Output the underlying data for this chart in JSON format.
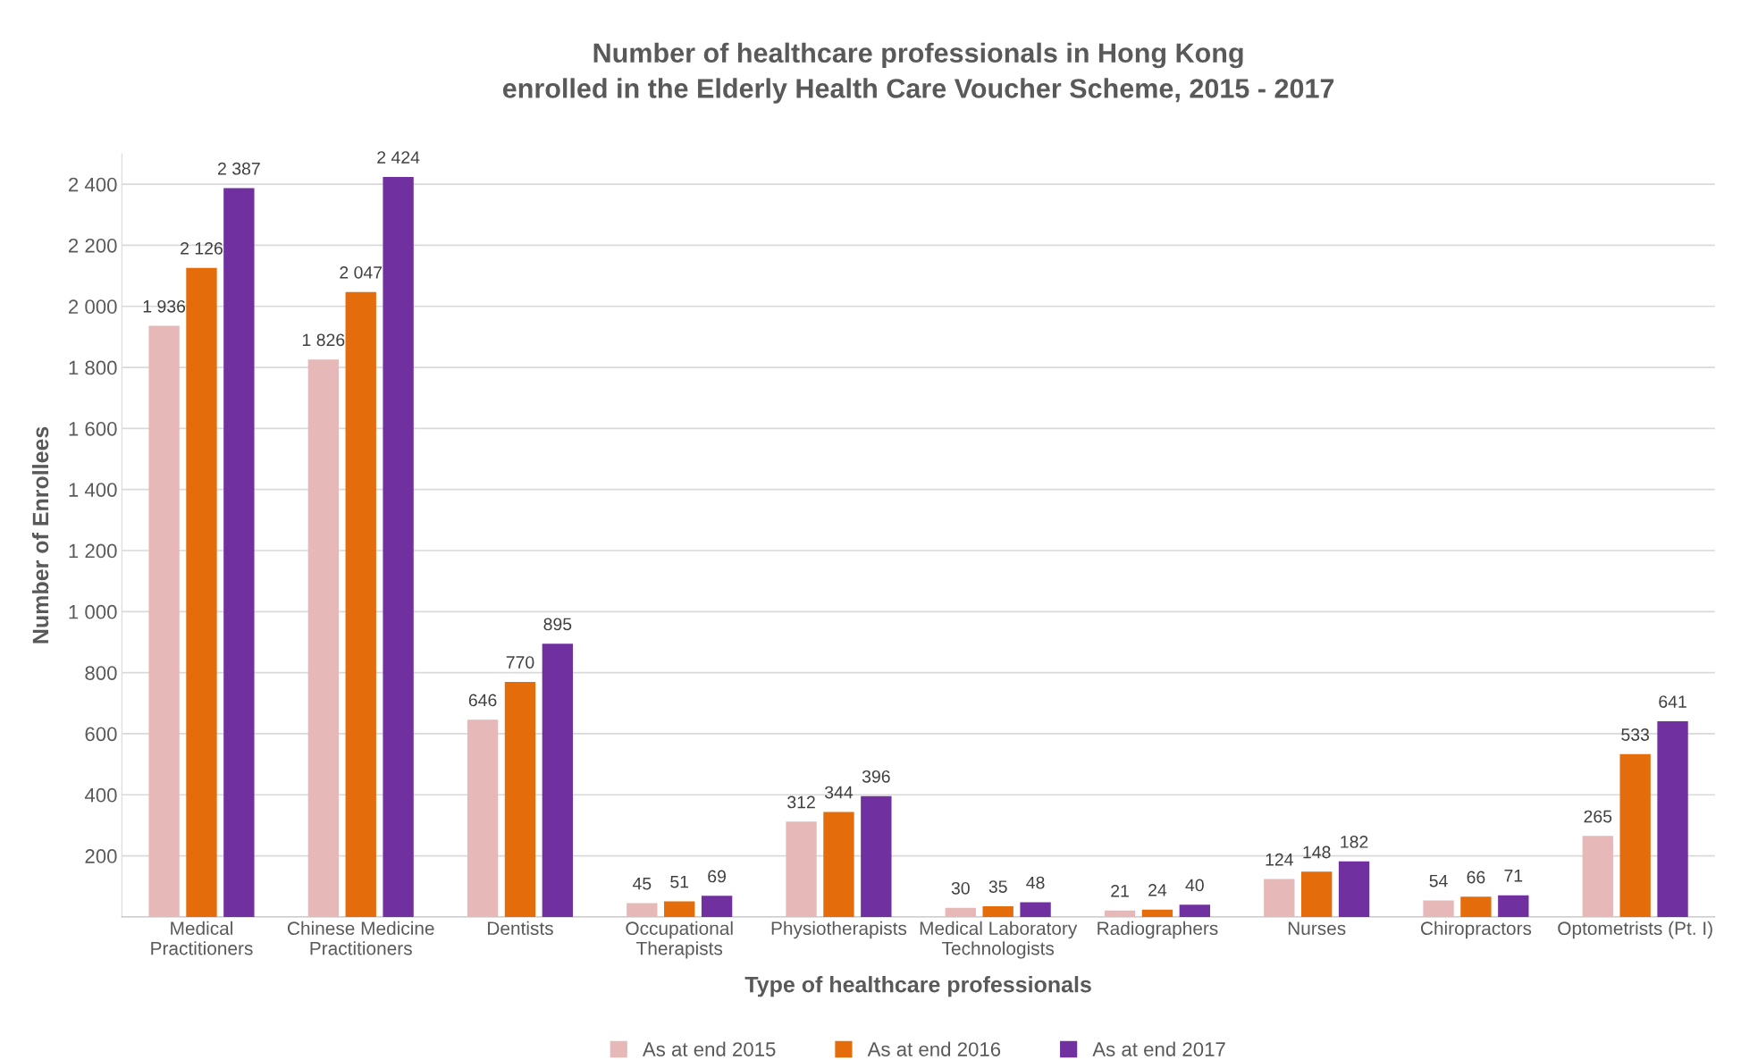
{
  "chart_data": {
    "type": "bar",
    "title": "Number of healthcare professionals in Hong Kong\nenrolled in the Elderly Health Care Voucher Scheme, 2015 - 2017",
    "xlabel": "Type of healthcare professionals",
    "ylabel": "Number of Enrollees",
    "categories": [
      "Medical\nPractitioners",
      "Chinese Medicine\nPractitioners",
      "Dentists",
      "Occupational\nTherapists",
      "Physiotherapists",
      "Medical Laboratory\nTechnologists",
      "Radiographers",
      "Nurses",
      "Chiropractors",
      "Optometrists (Pt. I)"
    ],
    "series": [
      {
        "name": "As at end 2015",
        "color": "#e6b9b8",
        "values": [
          1936,
          1826,
          646,
          45,
          312,
          30,
          21,
          124,
          54,
          265
        ],
        "value_labels": [
          "1 936",
          "1 826",
          "646",
          "45",
          "312",
          "30",
          "21",
          "124",
          "54",
          "265"
        ]
      },
      {
        "name": "As at end 2016",
        "color": "#e46c0a",
        "values": [
          2126,
          2047,
          770,
          51,
          344,
          35,
          24,
          148,
          66,
          533
        ],
        "value_labels": [
          "2 126",
          "2 047",
          "770",
          "51",
          "344",
          "35",
          "24",
          "148",
          "66",
          "533"
        ]
      },
      {
        "name": "As at end 2017",
        "color": "#7030a0",
        "values": [
          2387,
          2424,
          895,
          69,
          396,
          48,
          40,
          182,
          71,
          641
        ],
        "value_labels": [
          "2 387",
          "2 424",
          "895",
          "69",
          "396",
          "48",
          "40",
          "182",
          "71",
          "641"
        ]
      }
    ],
    "ylim": [
      0,
      2500
    ],
    "yticks": [
      {
        "value": 200,
        "label": "200"
      },
      {
        "value": 400,
        "label": "400"
      },
      {
        "value": 600,
        "label": "600"
      },
      {
        "value": 800,
        "label": "800"
      },
      {
        "value": 1000,
        "label": "1 000"
      },
      {
        "value": 1200,
        "label": "1 200"
      },
      {
        "value": 1400,
        "label": "1 400"
      },
      {
        "value": 1600,
        "label": "1 600"
      },
      {
        "value": 1800,
        "label": "1 800"
      },
      {
        "value": 2000,
        "label": "2 000"
      },
      {
        "value": 2200,
        "label": "2 200"
      },
      {
        "value": 2400,
        "label": "2 400"
      }
    ],
    "grid": "y",
    "legend": "bottom"
  }
}
